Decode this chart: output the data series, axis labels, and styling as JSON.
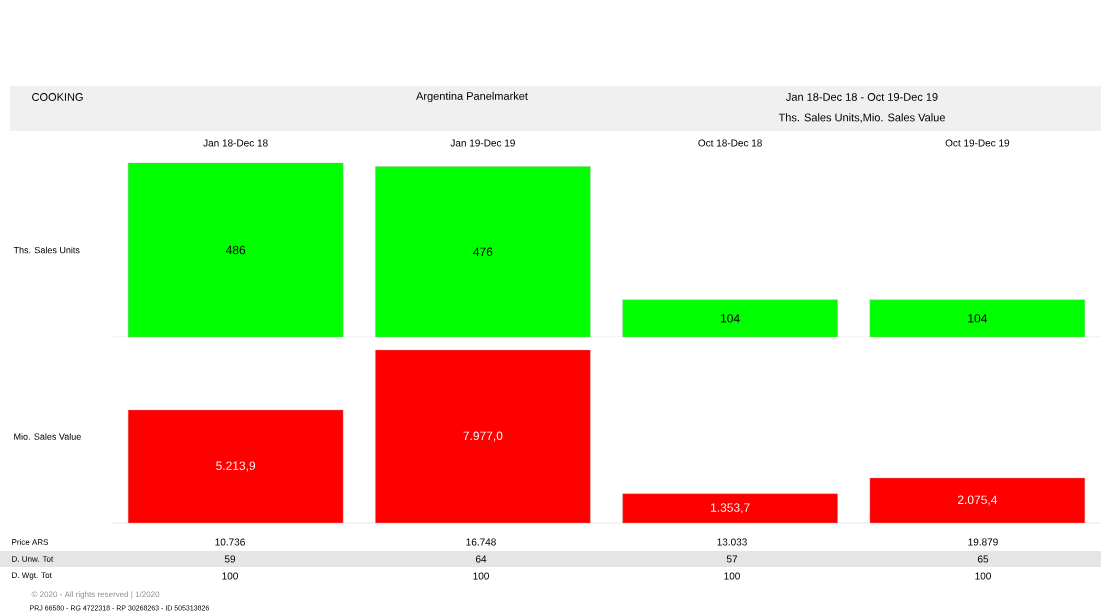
{
  "chart_data": [
    {
      "type": "other",
      "title": "COOKING",
      "subtitle": "Argentina Panelmarket",
      "annotations": [
        "Jan 18-Dec 18 - Oct 19-Dec 19",
        "Ths. Sales Units,Mio. Sales Value"
      ]
    },
    {
      "type": "bar",
      "categories": [
        "Jan 18-Dec 18",
        "Jan 19-Dec 19",
        "Oct 18-Dec 18",
        "Oct 19-Dec 19"
      ],
      "ylabel": "Ths. Sales Units",
      "values": [
        486,
        476,
        104,
        104
      ],
      "color": "#00ff00",
      "data_labels": true
    },
    {
      "type": "bar",
      "categories": [
        null,
        null,
        null,
        null
      ],
      "ylabel": "Mio. Sales Value",
      "values": [
        5213.9,
        7977.0,
        1353.7,
        2075.4
      ],
      "value_labels": [
        "5.213,9",
        "7.977,0",
        "1.353,7",
        "2.075,4"
      ],
      "color": "#ff0000"
    },
    {
      "type": "other",
      "y_categories": [
        "Price ARS",
        "D. Unw. Tot",
        "D. Wgt. Tot"
      ],
      "cell_labels": [
        [
          "10.736",
          "16.748",
          "13.033",
          "19.879"
        ],
        [
          "59",
          "64",
          "57",
          "65"
        ],
        [
          "100",
          "100",
          "100",
          "100"
        ]
      ],
      "annotations": [
        "© 2020 - All rights reserved | 1/2020",
        "PRJ 66580 - RG 4722318 - RP 30268263 - ID 505313826"
      ]
    }
  ]
}
